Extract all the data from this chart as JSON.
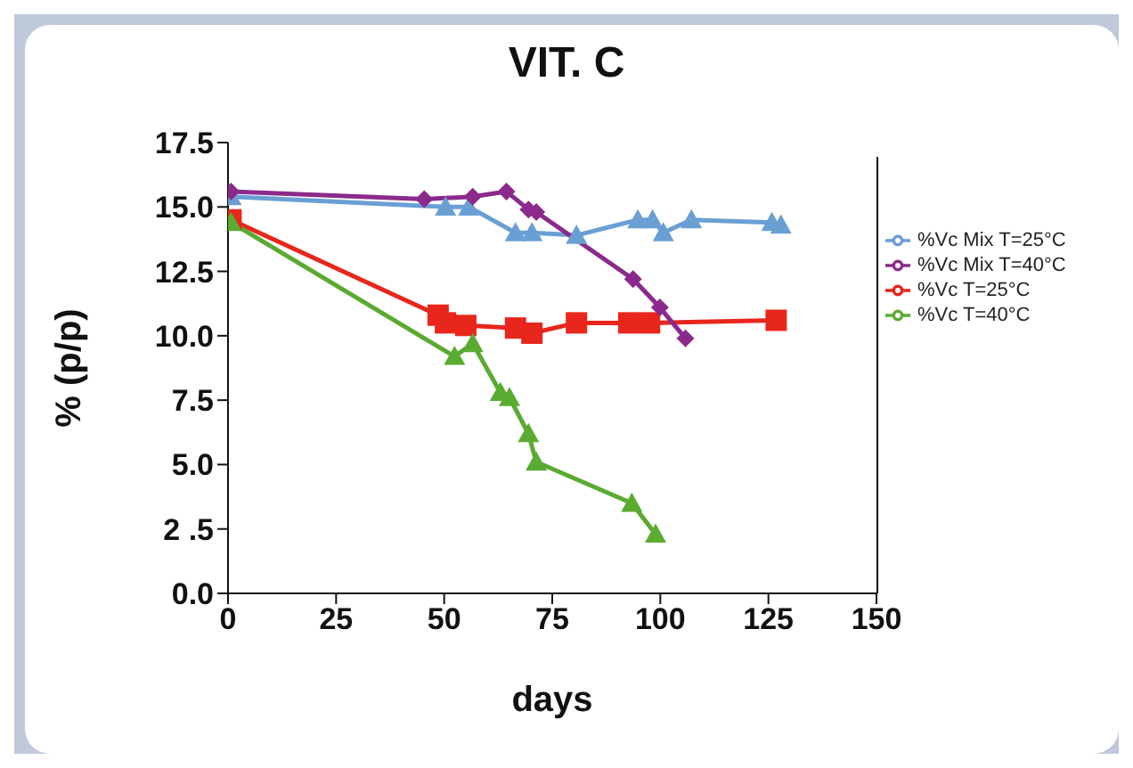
{
  "chart_data": {
    "type": "line",
    "title": "VIT. C",
    "xlabel": "days",
    "ylabel": "% (p/p)",
    "xlim": [
      0,
      150
    ],
    "xticks": [
      0,
      25,
      50,
      75,
      100,
      125,
      150
    ],
    "ylim": [
      0,
      17.5
    ],
    "yticks": [
      {
        "value": 0,
        "label": "0.0"
      },
      {
        "value": 2.5,
        "label": "2 .5"
      },
      {
        "value": 5,
        "label": "5.0"
      },
      {
        "value": 7.5,
        "label": "7.5"
      },
      {
        "value": 10,
        "label": "10.0"
      },
      {
        "value": 12.5,
        "label": "12.5"
      },
      {
        "value": 15,
        "label": "15.0"
      },
      {
        "value": 17.5,
        "label": "17.5"
      }
    ],
    "grid": false,
    "legend": "right",
    "series": [
      {
        "name": "%Vc T=25°C",
        "color": "#e8261c",
        "marker": "square",
        "x": [
          0.7,
          48.6,
          50.3,
          55,
          66.5,
          70.3,
          80.6,
          92.7,
          97.5,
          126.8
        ],
        "values": [
          14.5,
          10.8,
          10.5,
          10.4,
          10.3,
          10.1,
          10.5,
          10.5,
          10.5,
          10.6
        ]
      },
      {
        "name": "%Vc Mix T=25°C",
        "color": "#6a9fd4",
        "marker": "triangle",
        "x": [
          0.7,
          50.3,
          55.7,
          66.5,
          70.3,
          80.6,
          94.8,
          98.2,
          100.7,
          107.2,
          125.8,
          127.9
        ],
        "values": [
          15.4,
          15.0,
          15.0,
          14.0,
          14.0,
          13.9,
          14.5,
          14.5,
          14.0,
          14.5,
          14.4,
          14.3
        ]
      },
      {
        "name": "%Vc T=40°C",
        "color": "#5aab32",
        "marker": "triangle",
        "x": [
          0.7,
          52.4,
          56.6,
          63,
          65.1,
          69.5,
          71.3,
          93.4,
          98.9
        ],
        "values": [
          14.4,
          9.2,
          9.7,
          7.8,
          7.6,
          6.2,
          5.1,
          3.5,
          2.3
        ]
      },
      {
        "name": "%Vc Mix T=40°C",
        "color": "#8b2a8c",
        "marker": "diamond",
        "x": [
          0.7,
          45.4,
          56.6,
          64.4,
          69.5,
          71.3,
          93.7,
          99.9,
          105.8
        ],
        "values": [
          15.6,
          15.3,
          15.4,
          15.6,
          14.9,
          14.8,
          12.2,
          11.1,
          9.9
        ]
      }
    ]
  }
}
